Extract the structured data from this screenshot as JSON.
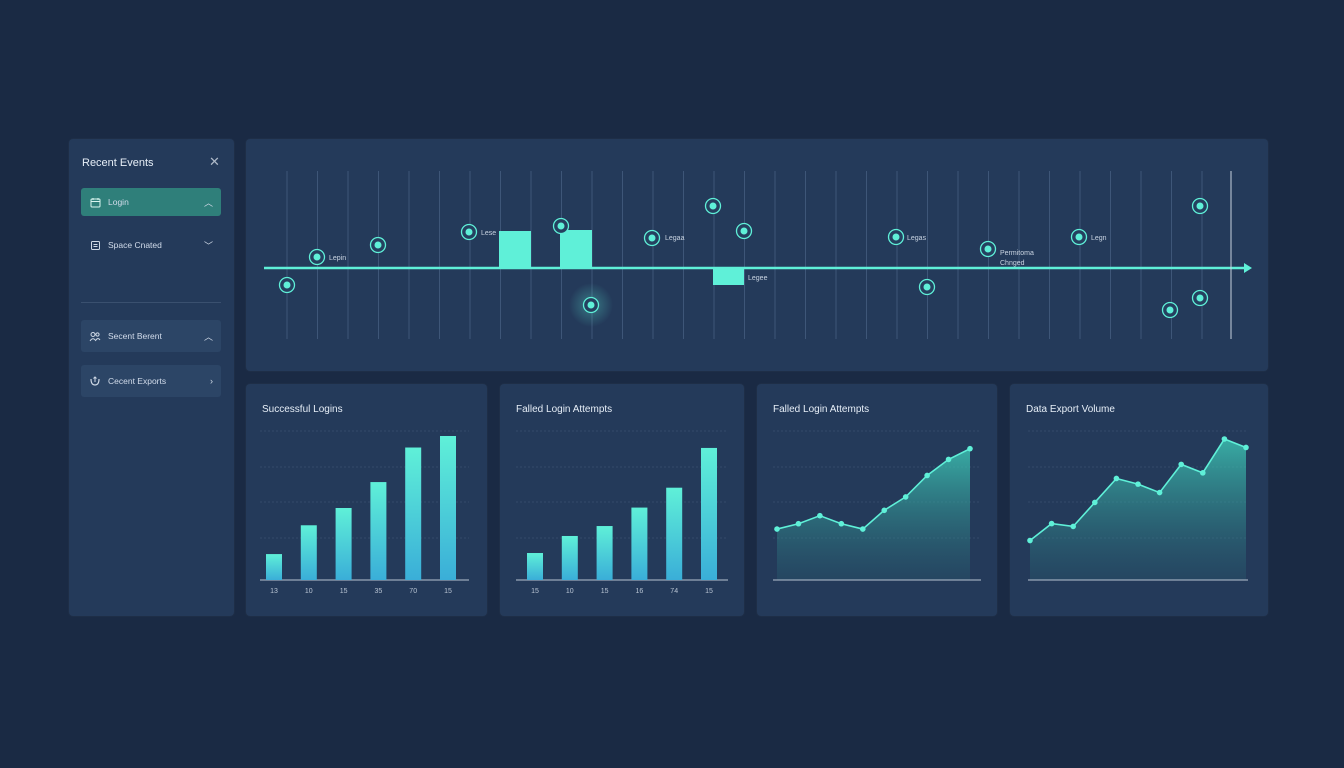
{
  "sidebar": {
    "title": "Recent Events",
    "close_icon": "close-icon",
    "items": [
      {
        "label": "Login",
        "icon": "calendar-icon",
        "chevron": "^",
        "active": true
      },
      {
        "label": "Space Cnated",
        "icon": "document-icon",
        "chevron": "v",
        "active": false
      },
      {
        "label": "Secent Berent",
        "icon": "users-icon",
        "chevron": "^",
        "active": false
      },
      {
        "label": "Cecent Exports",
        "icon": "export-icon",
        "chevron": ">",
        "active": false
      }
    ]
  },
  "timeline": {
    "labels": [
      {
        "id": "lbl1",
        "text": "Lepin"
      },
      {
        "id": "lbl2",
        "text": "Lese"
      },
      {
        "id": "lbl3",
        "text": "Legaa"
      },
      {
        "id": "lbl4",
        "text": "Legee"
      },
      {
        "id": "lbl5",
        "text": "Legas"
      },
      {
        "id": "lbl6a",
        "text": "Permitoma"
      },
      {
        "id": "lbl6b",
        "text": "Chnged"
      },
      {
        "id": "lbl7",
        "text": "Legn"
      }
    ]
  },
  "cards": [
    {
      "title": "Successful Logins"
    },
    {
      "title": "Falled Login Attempts"
    },
    {
      "title": "Falled Login Attempts"
    },
    {
      "title": "Data Export Volume"
    }
  ],
  "chart_data": [
    {
      "type": "bar",
      "title": "Successful Logins",
      "categories": [
        "13",
        "10",
        "15",
        "35",
        "70",
        "15"
      ],
      "values": [
        18,
        38,
        50,
        68,
        92,
        100
      ],
      "ylim": [
        0,
        100
      ],
      "grid": true
    },
    {
      "type": "bar",
      "title": "Falled Login Attempts",
      "categories": [
        "15",
        "10",
        "15",
        "16",
        "74",
        "15"
      ],
      "values": [
        19,
        31,
        38,
        51,
        65,
        93
      ],
      "ylim": [
        0,
        100
      ],
      "grid": true
    },
    {
      "type": "area",
      "title": "Falled Login Attempts",
      "values": [
        38,
        42,
        48,
        42,
        38,
        52,
        62,
        78,
        90,
        98
      ],
      "ylim": [
        0,
        100
      ],
      "grid": true
    },
    {
      "type": "area",
      "title": "Data Export Volume",
      "values": [
        28,
        40,
        38,
        55,
        72,
        68,
        62,
        82,
        76,
        100,
        94
      ],
      "ylim": [
        0,
        100
      ],
      "grid": true
    }
  ],
  "colors": {
    "background": "#1a2a44",
    "panel": "#243a5a",
    "accent": "#5ff0d8",
    "active_item": "#2f7f7a",
    "text": "#dbe6f2"
  }
}
